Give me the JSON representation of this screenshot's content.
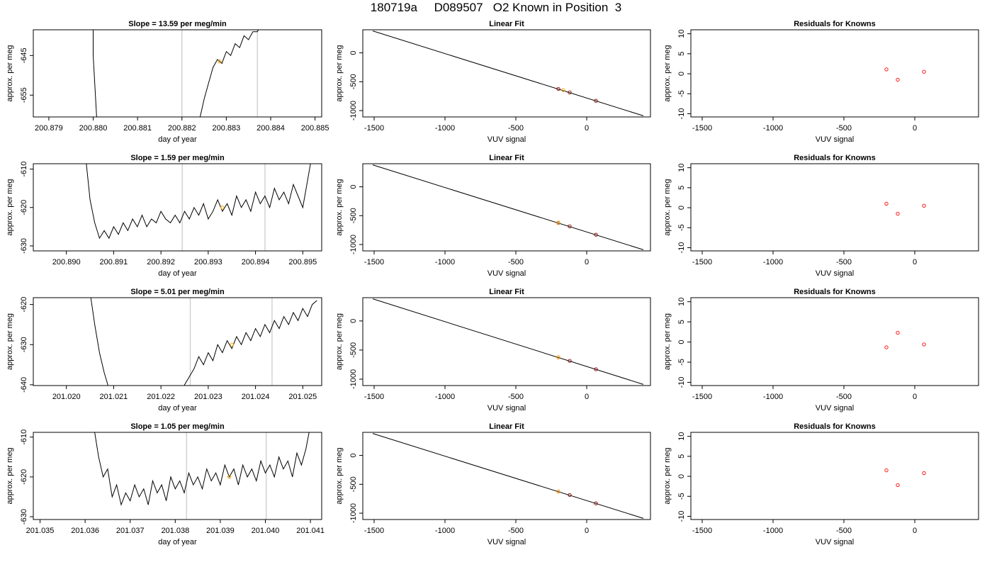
{
  "page_title": "180719a     D089507   O2 Known in Position  3",
  "colors": {
    "trace": "#000000",
    "marker_line": "#c8c8c8",
    "mid_point": "#ffa500",
    "residual_point": "#ff0000",
    "fit_point": "#8b0000"
  },
  "chart_data": [
    {
      "type": "line",
      "title": "Slope =  13.59  per meg/min",
      "xlabel": "day of year",
      "ylabel": "approx. per meg",
      "xlim": [
        200.87865,
        200.88515
      ],
      "ylim": [
        -660.5,
        -638.5
      ],
      "xticks": [
        200.879,
        200.88,
        200.881,
        200.882,
        200.883,
        200.884,
        200.885
      ],
      "xtick_labels": [
        "200.879",
        "200.880",
        "200.881",
        "200.882",
        "200.883",
        "200.884",
        "200.885"
      ],
      "yticks": [
        -655,
        -645
      ],
      "ytick_labels": [
        "-655",
        "-645"
      ],
      "vlines": [
        200.882,
        200.8837
      ],
      "mid_point": {
        "x": 200.88285,
        "y": -646.5
      },
      "trace_x": [
        200.88,
        200.88,
        200.8801,
        200.882,
        200.8824,
        200.8825,
        200.8826,
        200.8827,
        200.8828,
        200.8829,
        200.883,
        200.8831,
        200.8832,
        200.8833,
        200.8834,
        200.8835,
        200.8836,
        200.8837,
        200.8838
      ],
      "trace_y": [
        -637,
        -645,
        -665,
        -665,
        -661,
        -656,
        -652,
        -648,
        -646,
        -647,
        -644,
        -645,
        -642,
        -643,
        -640,
        -641,
        -639,
        -639,
        -637
      ]
    },
    {
      "type": "scatter",
      "title": "Linear Fit",
      "xlabel": "VUV signal",
      "ylabel": "approx. per meg",
      "xlim": [
        -1580,
        450
      ],
      "ylim": [
        -1110,
        400
      ],
      "xticks": [
        -1500,
        -1000,
        -500,
        0
      ],
      "xtick_labels": [
        "-1500",
        "-1000",
        "-500",
        "0"
      ],
      "yticks": [
        -1000,
        -500,
        0
      ],
      "ytick_labels": [
        "-1000",
        "-500",
        "0"
      ],
      "fit_line": {
        "x": [
          -1510,
          400
        ],
        "y": [
          380,
          -1090
        ]
      },
      "points": {
        "x": [
          -200,
          -120,
          65
        ],
        "y": [
          -625,
          -685,
          -830
        ]
      },
      "mid_point": {
        "x": -165,
        "y": -645
      }
    },
    {
      "type": "scatter",
      "title": "Residuals for Knowns",
      "xlabel": "VUV signal",
      "ylabel": "approx. per meg",
      "xlim": [
        -1580,
        450
      ],
      "ylim": [
        -10.8,
        11
      ],
      "xticks": [
        -1500,
        -1000,
        -500,
        0
      ],
      "xtick_labels": [
        "-1500",
        "-1000",
        "-500",
        "0"
      ],
      "yticks": [
        -10,
        -5,
        0,
        5,
        10
      ],
      "ytick_labels": [
        "-10",
        "-5",
        "0",
        "5",
        "10"
      ],
      "points": {
        "x": [
          -200,
          -120,
          65
        ],
        "y": [
          1.1,
          -1.5,
          0.5
        ]
      }
    },
    {
      "type": "line",
      "title": "Slope =  1.59  per meg/min",
      "xlabel": "day of year",
      "ylabel": "approx. per meg",
      "xlim": [
        200.8893,
        200.8954
      ],
      "ylim": [
        -631.3,
        -608.6
      ],
      "xticks": [
        200.89,
        200.891,
        200.892,
        200.893,
        200.894,
        200.895
      ],
      "xtick_labels": [
        "200.890",
        "200.891",
        "200.892",
        "200.893",
        "200.894",
        "200.895"
      ],
      "yticks": [
        -630,
        -620,
        -610
      ],
      "ytick_labels": [
        "-630",
        "-620",
        "-610"
      ],
      "vlines": [
        200.89245,
        200.8942
      ],
      "mid_point": {
        "x": 200.8933,
        "y": -620
      },
      "trace_x": [
        200.8904,
        200.8905,
        200.8906,
        200.8907,
        200.8908,
        200.8909,
        200.891,
        200.8911,
        200.8912,
        200.8913,
        200.8914,
        200.8915,
        200.8916,
        200.8917,
        200.8918,
        200.8919,
        200.892,
        200.8921,
        200.8922,
        200.8923,
        200.8924,
        200.8925,
        200.8926,
        200.8927,
        200.8928,
        200.8929,
        200.893,
        200.8931,
        200.8932,
        200.8933,
        200.8934,
        200.8935,
        200.8936,
        200.8937,
        200.8938,
        200.8939,
        200.894,
        200.8941,
        200.8942,
        200.8943,
        200.8944,
        200.8945,
        200.8946,
        200.8947,
        200.8948,
        200.8949,
        200.895,
        200.8951,
        200.8952
      ],
      "trace_y": [
        -606,
        -618,
        -624,
        -628,
        -626,
        -628,
        -625,
        -627,
        -624,
        -626,
        -623,
        -625,
        -622,
        -625,
        -623,
        -624,
        -621,
        -623,
        -624,
        -622,
        -624,
        -621,
        -623,
        -620,
        -622,
        -619,
        -623,
        -621,
        -618,
        -621,
        -619,
        -622,
        -617,
        -620,
        -618,
        -621,
        -616,
        -619,
        -617,
        -620,
        -615,
        -618,
        -616,
        -619,
        -614,
        -617,
        -620,
        -613,
        -606
      ]
    },
    {
      "type": "scatter",
      "title": "Linear Fit",
      "xlabel": "VUV signal",
      "ylabel": "approx. per meg",
      "xlim": [
        -1580,
        450
      ],
      "ylim": [
        -1110,
        400
      ],
      "xticks": [
        -1500,
        -1000,
        -500,
        0
      ],
      "xtick_labels": [
        "-1500",
        "-1000",
        "-500",
        "0"
      ],
      "yticks": [
        -1000,
        -500,
        0
      ],
      "ytick_labels": [
        "-1000",
        "-500",
        "0"
      ],
      "fit_line": {
        "x": [
          -1510,
          400
        ],
        "y": [
          380,
          -1090
        ]
      },
      "points": {
        "x": [
          -200,
          -120,
          65
        ],
        "y": [
          -625,
          -685,
          -830
        ]
      },
      "mid_point": {
        "x": -200,
        "y": -620
      }
    },
    {
      "type": "scatter",
      "title": "Residuals for Knowns",
      "xlabel": "VUV signal",
      "ylabel": "approx. per meg",
      "xlim": [
        -1580,
        450
      ],
      "ylim": [
        -10.8,
        11
      ],
      "xticks": [
        -1500,
        -1000,
        -500,
        0
      ],
      "xtick_labels": [
        "-1500",
        "-1000",
        "-500",
        "0"
      ],
      "yticks": [
        -10,
        -5,
        0,
        5,
        10
      ],
      "ytick_labels": [
        "-10",
        "-5",
        "0",
        "5",
        "10"
      ],
      "points": {
        "x": [
          -200,
          -120,
          65
        ],
        "y": [
          1.0,
          -1.5,
          0.5
        ]
      }
    },
    {
      "type": "line",
      "title": "Slope =  5.01  per meg/min",
      "xlabel": "day of year",
      "ylabel": "approx. per meg",
      "xlim": [
        201.0193,
        201.0254
      ],
      "ylim": [
        -640.2,
        -618.3
      ],
      "xticks": [
        201.02,
        201.021,
        201.022,
        201.023,
        201.024,
        201.025
      ],
      "xtick_labels": [
        "201.020",
        "201.021",
        "201.022",
        "201.023",
        "201.024",
        "201.025"
      ],
      "yticks": [
        -640,
        -630,
        -620
      ],
      "ytick_labels": [
        "-640",
        "-630",
        "-620"
      ],
      "vlines": [
        201.02262,
        201.02435
      ],
      "mid_point": {
        "x": 201.0235,
        "y": -630
      },
      "trace_x": [
        201.0205,
        201.0206,
        201.0207,
        201.0208,
        201.0209,
        201.02095,
        201.0224,
        201.0225,
        201.0226,
        201.0227,
        201.0228,
        201.0229,
        201.023,
        201.0231,
        201.0232,
        201.0233,
        201.0234,
        201.0235,
        201.0236,
        201.0237,
        201.0238,
        201.0239,
        201.024,
        201.0241,
        201.0242,
        201.0243,
        201.0244,
        201.0245,
        201.0246,
        201.0247,
        201.0248,
        201.0249,
        201.025,
        201.0251,
        201.0252,
        201.0253
      ],
      "trace_y": [
        -617,
        -625,
        -632,
        -637,
        -641,
        -643,
        -643,
        -640,
        -638,
        -636,
        -633,
        -635,
        -632,
        -634,
        -630,
        -632,
        -629,
        -631,
        -628,
        -630,
        -627,
        -629,
        -626,
        -628,
        -625,
        -627,
        -624,
        -626,
        -623,
        -625,
        -622,
        -624,
        -621,
        -623,
        -620,
        -619
      ]
    },
    {
      "type": "scatter",
      "title": "Linear Fit",
      "xlabel": "VUV signal",
      "ylabel": "approx. per meg",
      "xlim": [
        -1580,
        450
      ],
      "ylim": [
        -1110,
        400
      ],
      "xticks": [
        -1500,
        -1000,
        -500,
        0
      ],
      "xtick_labels": [
        "-1500",
        "-1000",
        "-500",
        "0"
      ],
      "yticks": [
        -1000,
        -500,
        0
      ],
      "ytick_labels": [
        "-1000",
        "-500",
        "0"
      ],
      "fit_line": {
        "x": [
          -1510,
          400
        ],
        "y": [
          380,
          -1090
        ]
      },
      "points": {
        "x": [
          -200,
          -120,
          65
        ],
        "y": [
          -625,
          -685,
          -830
        ]
      },
      "mid_point": {
        "x": -200,
        "y": -625
      }
    },
    {
      "type": "scatter",
      "title": "Residuals for Knowns",
      "xlabel": "VUV signal",
      "ylabel": "approx. per meg",
      "xlim": [
        -1580,
        450
      ],
      "ylim": [
        -10.8,
        11
      ],
      "xticks": [
        -1500,
        -1000,
        -500,
        0
      ],
      "xtick_labels": [
        "-1500",
        "-1000",
        "-500",
        "0"
      ],
      "yticks": [
        -10,
        -5,
        0,
        5,
        10
      ],
      "ytick_labels": [
        "-10",
        "-5",
        "0",
        "5",
        "10"
      ],
      "points": {
        "x": [
          -200,
          -120,
          65
        ],
        "y": [
          -1.3,
          2.3,
          -0.6
        ]
      }
    },
    {
      "type": "line",
      "title": "Slope =  1.05  per meg/min",
      "xlabel": "day of year",
      "ylabel": "approx. per meg",
      "xlim": [
        201.03485,
        201.04125
      ],
      "ylim": [
        -630.7,
        -608.8
      ],
      "xticks": [
        201.035,
        201.036,
        201.037,
        201.038,
        201.039,
        201.04,
        201.041
      ],
      "xtick_labels": [
        "201.035",
        "201.036",
        "201.037",
        "201.038",
        "201.039",
        "201.040",
        "201.041"
      ],
      "yticks": [
        -630,
        -620,
        -610
      ],
      "ytick_labels": [
        "-630",
        "-620",
        "-610"
      ],
      "vlines": [
        201.03825,
        201.04002
      ],
      "mid_point": {
        "x": 201.0392,
        "y": -620
      },
      "trace_x": [
        201.0362,
        201.0363,
        201.0364,
        201.0365,
        201.0366,
        201.0367,
        201.0368,
        201.0369,
        201.037,
        201.0371,
        201.0372,
        201.0373,
        201.0374,
        201.0375,
        201.0376,
        201.0377,
        201.0378,
        201.0379,
        201.038,
        201.0381,
        201.0382,
        201.0383,
        201.0384,
        201.0385,
        201.0386,
        201.0387,
        201.0388,
        201.0389,
        201.039,
        201.0391,
        201.0392,
        201.0393,
        201.0394,
        201.0395,
        201.0396,
        201.0397,
        201.0398,
        201.0399,
        201.04,
        201.0401,
        201.0402,
        201.0403,
        201.0404,
        201.0405,
        201.0406,
        201.0407,
        201.0408,
        201.0409,
        201.041
      ],
      "trace_y": [
        -608,
        -615,
        -620,
        -618,
        -625,
        -622,
        -627,
        -624,
        -626,
        -622,
        -625,
        -623,
        -627,
        -621,
        -624,
        -622,
        -626,
        -620,
        -623,
        -621,
        -624,
        -619,
        -622,
        -620,
        -623,
        -618,
        -621,
        -619,
        -622,
        -617,
        -620,
        -618,
        -622,
        -617,
        -620,
        -618,
        -621,
        -616,
        -619,
        -617,
        -620,
        -615,
        -618,
        -616,
        -620,
        -614,
        -617,
        -613,
        -607
      ]
    },
    {
      "type": "scatter",
      "title": "Linear Fit",
      "xlabel": "VUV signal",
      "ylabel": "approx. per meg",
      "xlim": [
        -1580,
        450
      ],
      "ylim": [
        -1110,
        400
      ],
      "xticks": [
        -1500,
        -1000,
        -500,
        0
      ],
      "xtick_labels": [
        "-1500",
        "-1000",
        "-500",
        "0"
      ],
      "yticks": [
        -1000,
        -500,
        0
      ],
      "ytick_labels": [
        "-1000",
        "-500",
        "0"
      ],
      "fit_line": {
        "x": [
          -1510,
          400
        ],
        "y": [
          380,
          -1090
        ]
      },
      "points": {
        "x": [
          -200,
          -120,
          65
        ],
        "y": [
          -625,
          -685,
          -830
        ]
      },
      "mid_point": {
        "x": -200,
        "y": -625
      }
    },
    {
      "type": "scatter",
      "title": "Residuals for Knowns",
      "xlabel": "VUV signal",
      "ylabel": "approx. per meg",
      "xlim": [
        -1580,
        450
      ],
      "ylim": [
        -10.8,
        11
      ],
      "xticks": [
        -1500,
        -1000,
        -500,
        0
      ],
      "xtick_labels": [
        "-1500",
        "-1000",
        "-500",
        "0"
      ],
      "yticks": [
        -10,
        -5,
        0,
        5,
        10
      ],
      "ytick_labels": [
        "-10",
        "-5",
        "0",
        "5",
        "10"
      ],
      "points": {
        "x": [
          -200,
          -120,
          65
        ],
        "y": [
          1.5,
          -2.2,
          0.8
        ]
      }
    }
  ]
}
